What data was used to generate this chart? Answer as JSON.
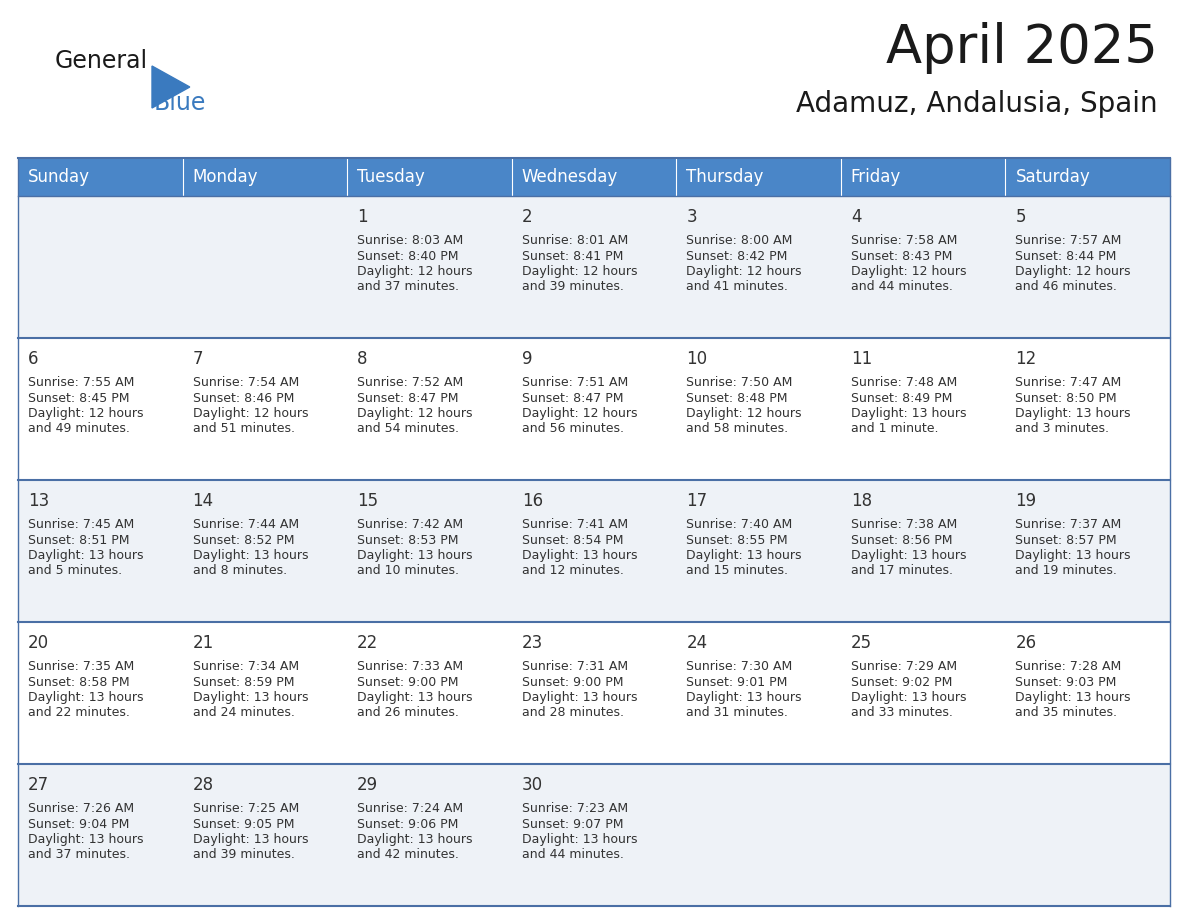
{
  "title": "April 2025",
  "subtitle": "Adamuz, Andalusia, Spain",
  "header_bg": "#4a86c8",
  "header_text_color": "#ffffff",
  "cell_bg_light": "#eef2f7",
  "cell_bg_white": "#ffffff",
  "separator_color": "#4a6fa5",
  "grid_color": "#cccccc",
  "days_of_week": [
    "Sunday",
    "Monday",
    "Tuesday",
    "Wednesday",
    "Thursday",
    "Friday",
    "Saturday"
  ],
  "weeks": [
    [
      {
        "day": "",
        "sunrise": "",
        "sunset": "",
        "daylight": ""
      },
      {
        "day": "",
        "sunrise": "",
        "sunset": "",
        "daylight": ""
      },
      {
        "day": "1",
        "sunrise": "Sunrise: 8:03 AM",
        "sunset": "Sunset: 8:40 PM",
        "daylight": "Daylight: 12 hours\nand 37 minutes."
      },
      {
        "day": "2",
        "sunrise": "Sunrise: 8:01 AM",
        "sunset": "Sunset: 8:41 PM",
        "daylight": "Daylight: 12 hours\nand 39 minutes."
      },
      {
        "day": "3",
        "sunrise": "Sunrise: 8:00 AM",
        "sunset": "Sunset: 8:42 PM",
        "daylight": "Daylight: 12 hours\nand 41 minutes."
      },
      {
        "day": "4",
        "sunrise": "Sunrise: 7:58 AM",
        "sunset": "Sunset: 8:43 PM",
        "daylight": "Daylight: 12 hours\nand 44 minutes."
      },
      {
        "day": "5",
        "sunrise": "Sunrise: 7:57 AM",
        "sunset": "Sunset: 8:44 PM",
        "daylight": "Daylight: 12 hours\nand 46 minutes."
      }
    ],
    [
      {
        "day": "6",
        "sunrise": "Sunrise: 7:55 AM",
        "sunset": "Sunset: 8:45 PM",
        "daylight": "Daylight: 12 hours\nand 49 minutes."
      },
      {
        "day": "7",
        "sunrise": "Sunrise: 7:54 AM",
        "sunset": "Sunset: 8:46 PM",
        "daylight": "Daylight: 12 hours\nand 51 minutes."
      },
      {
        "day": "8",
        "sunrise": "Sunrise: 7:52 AM",
        "sunset": "Sunset: 8:47 PM",
        "daylight": "Daylight: 12 hours\nand 54 minutes."
      },
      {
        "day": "9",
        "sunrise": "Sunrise: 7:51 AM",
        "sunset": "Sunset: 8:47 PM",
        "daylight": "Daylight: 12 hours\nand 56 minutes."
      },
      {
        "day": "10",
        "sunrise": "Sunrise: 7:50 AM",
        "sunset": "Sunset: 8:48 PM",
        "daylight": "Daylight: 12 hours\nand 58 minutes."
      },
      {
        "day": "11",
        "sunrise": "Sunrise: 7:48 AM",
        "sunset": "Sunset: 8:49 PM",
        "daylight": "Daylight: 13 hours\nand 1 minute."
      },
      {
        "day": "12",
        "sunrise": "Sunrise: 7:47 AM",
        "sunset": "Sunset: 8:50 PM",
        "daylight": "Daylight: 13 hours\nand 3 minutes."
      }
    ],
    [
      {
        "day": "13",
        "sunrise": "Sunrise: 7:45 AM",
        "sunset": "Sunset: 8:51 PM",
        "daylight": "Daylight: 13 hours\nand 5 minutes."
      },
      {
        "day": "14",
        "sunrise": "Sunrise: 7:44 AM",
        "sunset": "Sunset: 8:52 PM",
        "daylight": "Daylight: 13 hours\nand 8 minutes."
      },
      {
        "day": "15",
        "sunrise": "Sunrise: 7:42 AM",
        "sunset": "Sunset: 8:53 PM",
        "daylight": "Daylight: 13 hours\nand 10 minutes."
      },
      {
        "day": "16",
        "sunrise": "Sunrise: 7:41 AM",
        "sunset": "Sunset: 8:54 PM",
        "daylight": "Daylight: 13 hours\nand 12 minutes."
      },
      {
        "day": "17",
        "sunrise": "Sunrise: 7:40 AM",
        "sunset": "Sunset: 8:55 PM",
        "daylight": "Daylight: 13 hours\nand 15 minutes."
      },
      {
        "day": "18",
        "sunrise": "Sunrise: 7:38 AM",
        "sunset": "Sunset: 8:56 PM",
        "daylight": "Daylight: 13 hours\nand 17 minutes."
      },
      {
        "day": "19",
        "sunrise": "Sunrise: 7:37 AM",
        "sunset": "Sunset: 8:57 PM",
        "daylight": "Daylight: 13 hours\nand 19 minutes."
      }
    ],
    [
      {
        "day": "20",
        "sunrise": "Sunrise: 7:35 AM",
        "sunset": "Sunset: 8:58 PM",
        "daylight": "Daylight: 13 hours\nand 22 minutes."
      },
      {
        "day": "21",
        "sunrise": "Sunrise: 7:34 AM",
        "sunset": "Sunset: 8:59 PM",
        "daylight": "Daylight: 13 hours\nand 24 minutes."
      },
      {
        "day": "22",
        "sunrise": "Sunrise: 7:33 AM",
        "sunset": "Sunset: 9:00 PM",
        "daylight": "Daylight: 13 hours\nand 26 minutes."
      },
      {
        "day": "23",
        "sunrise": "Sunrise: 7:31 AM",
        "sunset": "Sunset: 9:00 PM",
        "daylight": "Daylight: 13 hours\nand 28 minutes."
      },
      {
        "day": "24",
        "sunrise": "Sunrise: 7:30 AM",
        "sunset": "Sunset: 9:01 PM",
        "daylight": "Daylight: 13 hours\nand 31 minutes."
      },
      {
        "day": "25",
        "sunrise": "Sunrise: 7:29 AM",
        "sunset": "Sunset: 9:02 PM",
        "daylight": "Daylight: 13 hours\nand 33 minutes."
      },
      {
        "day": "26",
        "sunrise": "Sunrise: 7:28 AM",
        "sunset": "Sunset: 9:03 PM",
        "daylight": "Daylight: 13 hours\nand 35 minutes."
      }
    ],
    [
      {
        "day": "27",
        "sunrise": "Sunrise: 7:26 AM",
        "sunset": "Sunset: 9:04 PM",
        "daylight": "Daylight: 13 hours\nand 37 minutes."
      },
      {
        "day": "28",
        "sunrise": "Sunrise: 7:25 AM",
        "sunset": "Sunset: 9:05 PM",
        "daylight": "Daylight: 13 hours\nand 39 minutes."
      },
      {
        "day": "29",
        "sunrise": "Sunrise: 7:24 AM",
        "sunset": "Sunset: 9:06 PM",
        "daylight": "Daylight: 13 hours\nand 42 minutes."
      },
      {
        "day": "30",
        "sunrise": "Sunrise: 7:23 AM",
        "sunset": "Sunset: 9:07 PM",
        "daylight": "Daylight: 13 hours\nand 44 minutes."
      },
      {
        "day": "",
        "sunrise": "",
        "sunset": "",
        "daylight": ""
      },
      {
        "day": "",
        "sunrise": "",
        "sunset": "",
        "daylight": ""
      },
      {
        "day": "",
        "sunrise": "",
        "sunset": "",
        "daylight": ""
      }
    ]
  ],
  "logo_text1": "General",
  "logo_text2": "Blue",
  "logo_color1": "#1a1a1a",
  "logo_color2": "#3a7abf",
  "logo_triangle_color": "#3a7abf",
  "title_fontsize": 38,
  "subtitle_fontsize": 20,
  "header_fontsize": 12,
  "day_num_fontsize": 12,
  "cell_fontsize": 9
}
